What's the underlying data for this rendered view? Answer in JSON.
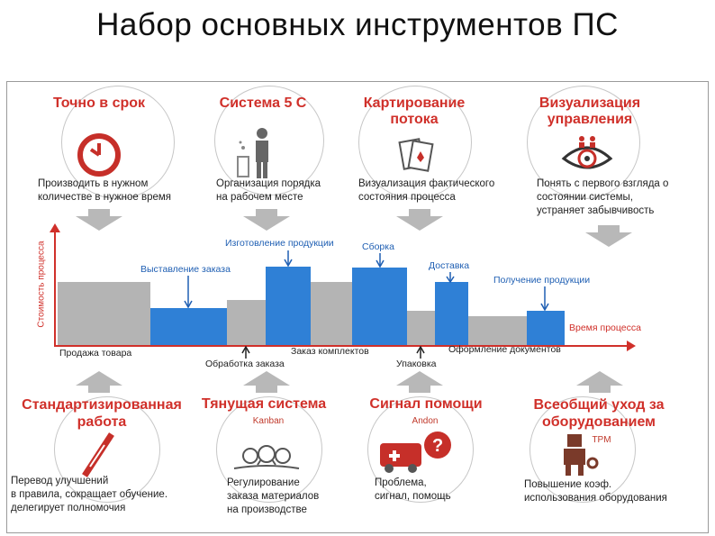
{
  "title": "Набор основных инструментов ПС",
  "tools_top": [
    {
      "heading": "Точно в срок",
      "desc": [
        "Производить в нужном",
        "количестве в нужное время"
      ]
    },
    {
      "heading": "Система 5 С",
      "desc": [
        "Организация порядка",
        "на рабочем месте"
      ]
    },
    {
      "heading": "Картирование потока",
      "desc": [
        "Визуализация фактического",
        "состояния процесса"
      ]
    },
    {
      "heading": "Визуализация управления",
      "desc": [
        "Понять с первого взгляда о",
        "состоянии системы,",
        "устраняет забывчивость"
      ]
    }
  ],
  "tools_bottom": [
    {
      "heading": "Стандартизированная работа",
      "sub": "",
      "desc": [
        "Перевод улучшений",
        "в правила, сокращает обучение.",
        "делегирует полномочия"
      ]
    },
    {
      "heading": "Тянущая система",
      "sub": "Kanban",
      "desc": [
        "Регулирование",
        "заказа материалов",
        "на производстве"
      ]
    },
    {
      "heading": "Сигнал помощи",
      "sub": "Andon",
      "desc": [
        "Проблема,",
        "сигнал, помощь"
      ]
    },
    {
      "heading": "Всеобщий уход за оборудованием",
      "sub": "TPM",
      "desc": [
        "Повышение коэф.",
        "использования оборудования"
      ]
    }
  ],
  "process": {
    "y_label": "Стоимость процесса",
    "x_label": "Время процесса",
    "blue_labels": [
      "Выставление заказа",
      "Изготовление продукции",
      "Сборка",
      "Доставка",
      "Получение продукции"
    ],
    "dark_labels": [
      "Продажа товара",
      "Обработка заказа",
      "Заказ комплектов",
      "Упаковка",
      "Оформление документов"
    ]
  },
  "colors": {
    "accent_red": "#d0302a",
    "blue": "#2f80d6",
    "gray": "#b4b4b4"
  }
}
